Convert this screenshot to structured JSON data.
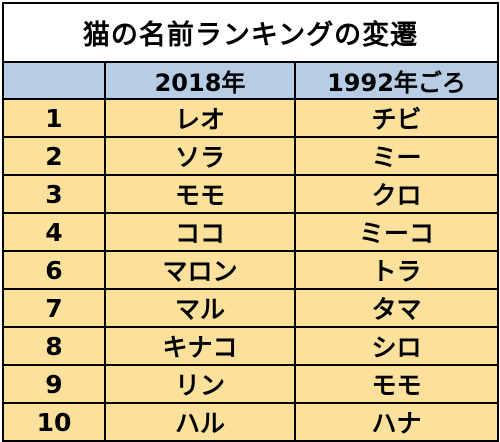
{
  "table": {
    "title": "猫の名前ランキングの変遷",
    "header": {
      "rank": "",
      "year_2018": "2018年",
      "year_1992": "1992年ごろ"
    },
    "rows": [
      {
        "rank": "1",
        "name_2018": "レオ",
        "name_1992": "チビ"
      },
      {
        "rank": "2",
        "name_2018": "ソラ",
        "name_1992": "ミー"
      },
      {
        "rank": "3",
        "name_2018": "モモ",
        "name_1992": "クロ"
      },
      {
        "rank": "4",
        "name_2018": "ココ",
        "name_1992": "ミーコ"
      },
      {
        "rank": "6",
        "name_2018": "マロン",
        "name_1992": "トラ"
      },
      {
        "rank": "7",
        "name_2018": "マル",
        "name_1992": "タマ"
      },
      {
        "rank": "8",
        "name_2018": "キナコ",
        "name_1992": "シロ"
      },
      {
        "rank": "9",
        "name_2018": "リン",
        "name_1992": "モモ"
      },
      {
        "rank": "10",
        "name_2018": "ハル",
        "name_1992": "ハナ"
      }
    ],
    "colors": {
      "header_background": "#b7cde6",
      "row_background": "#fbe19c",
      "border": "#000000"
    }
  }
}
